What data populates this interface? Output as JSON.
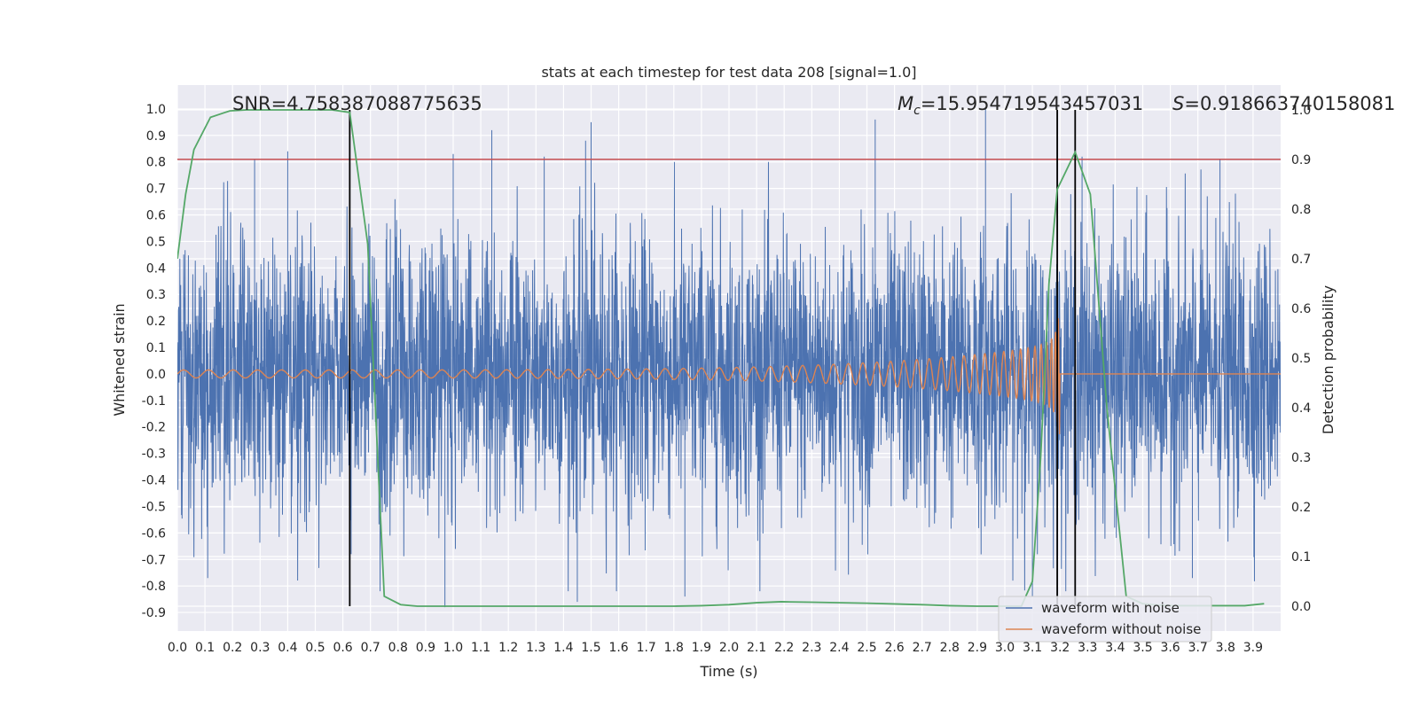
{
  "chart_data": {
    "type": "line",
    "title": "stats at each timestep for test data 208 [signal=1.0]",
    "xlabel": "Time (s)",
    "ylabel": "Whitened strain",
    "y2label": "Detection probability",
    "xlim": [
      0.0,
      4.0
    ],
    "ylim": [
      -0.97,
      1.09
    ],
    "y2lim": [
      -0.05,
      1.05
    ],
    "x_ticks": [
      "0.0",
      "0.1",
      "0.2",
      "0.3",
      "0.4",
      "0.5",
      "0.6",
      "0.7",
      "0.8",
      "0.9",
      "1.0",
      "1.1",
      "1.2",
      "1.3",
      "1.4",
      "1.5",
      "1.6",
      "1.7",
      "1.8",
      "1.9",
      "2.0",
      "2.1",
      "2.2",
      "2.3",
      "2.4",
      "2.5",
      "2.6",
      "2.7",
      "2.8",
      "2.9",
      "3.0",
      "3.1",
      "3.2",
      "3.3",
      "3.4",
      "3.5",
      "3.6",
      "3.7",
      "3.8",
      "3.9"
    ],
    "y_ticks": [
      "1.0",
      "0.9",
      "0.8",
      "0.7",
      "0.6",
      "0.5",
      "0.4",
      "0.3",
      "0.2",
      "0.1",
      "0.0",
      "-0.1",
      "-0.2",
      "-0.3",
      "-0.4",
      "-0.5",
      "-0.6",
      "-0.7",
      "-0.8",
      "-0.9"
    ],
    "y2_ticks": [
      "1.0",
      "0.9",
      "0.8",
      "0.7",
      "0.6",
      "0.5",
      "0.4",
      "0.3",
      "0.2",
      "0.1",
      "0.0"
    ],
    "grid": true,
    "legend_position": "lower-right",
    "annotations": {
      "snr": "SNR=4.758387088775635",
      "mc": "=15.954719543457031",
      "mc_symbol": "M",
      "mc_sub": "c",
      "s": "=0.918663740158081",
      "s_symbol": "S"
    },
    "threshold_y": 0.81,
    "vertical_markers": [
      0.625,
      3.19,
      3.255
    ],
    "series": [
      {
        "name": "waveform with noise",
        "axis": "left",
        "color": "#4c72b0",
        "x_range": [
          0.0,
          4.0
        ],
        "std": 0.26,
        "peaks": [
          [
            0.28,
            0.81
          ],
          [
            0.4,
            0.84
          ],
          [
            0.97,
            -0.88
          ],
          [
            1.0,
            0.83
          ],
          [
            1.14,
            0.92
          ],
          [
            1.33,
            0.82
          ],
          [
            1.45,
            -0.86
          ],
          [
            1.48,
            0.88
          ],
          [
            1.5,
            0.95
          ],
          [
            1.84,
            -0.84
          ],
          [
            2.53,
            0.96
          ],
          [
            2.93,
            1.0
          ],
          [
            3.1,
            -0.84
          ],
          [
            3.28,
            0.82
          ],
          [
            3.68,
            -0.77
          ],
          [
            3.78,
            0.81
          ],
          [
            0.11,
            -0.77
          ],
          [
            0.63,
            -0.68
          ]
        ]
      },
      {
        "name": "waveform without noise",
        "axis": "left",
        "color": "#dd8452",
        "chirp": {
          "t_merge": 3.2,
          "f0": 11,
          "A0": 0.015,
          "A_end": 0.28
        }
      },
      {
        "name": "detection probability",
        "axis": "right",
        "color": "#55a868",
        "x": [
          0.0,
          0.03,
          0.06,
          0.12,
          0.19,
          0.25,
          0.31,
          0.37,
          0.44,
          0.5,
          0.56,
          0.625,
          0.69,
          0.75,
          0.81,
          0.87,
          0.94,
          1.0,
          1.3,
          1.6,
          1.8,
          1.9,
          2.0,
          2.1,
          2.19,
          2.3,
          2.5,
          2.7,
          2.8,
          2.9,
          3.0,
          3.06,
          3.1,
          3.13,
          3.16,
          3.19,
          3.255,
          3.31,
          3.37,
          3.44,
          3.5,
          3.56,
          3.62,
          3.69,
          3.75,
          3.81,
          3.87,
          3.94
        ],
        "values": [
          0.7,
          0.83,
          0.92,
          0.985,
          0.998,
          1.0,
          1.0,
          1.0,
          1.0,
          1.0,
          1.0,
          0.995,
          0.73,
          0.02,
          0.003,
          0.0,
          0.0,
          0.0,
          0.0,
          0.0,
          0.0,
          0.001,
          0.003,
          0.007,
          0.009,
          0.008,
          0.006,
          0.003,
          0.001,
          0.0,
          0.0,
          0.0,
          0.05,
          0.3,
          0.65,
          0.84,
          0.915,
          0.83,
          0.4,
          0.02,
          0.005,
          0.002,
          0.001,
          0.001,
          0.001,
          0.001,
          0.001,
          0.005
        ]
      }
    ]
  }
}
